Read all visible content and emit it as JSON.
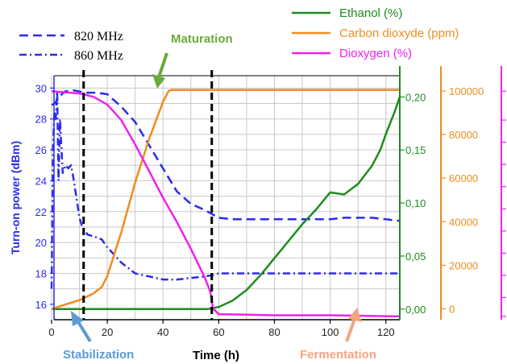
{
  "chart_data": {
    "type": "line",
    "xlabel": "Time (h)",
    "xlim": [
      0,
      125
    ],
    "x_ticks": [
      0,
      20,
      40,
      60,
      80,
      100,
      120
    ],
    "axes": {
      "left": {
        "label": "Turn-on power (dBm)",
        "lim": [
          15,
          30.8
        ],
        "ticks": [
          16,
          18,
          20,
          22,
          24,
          26,
          28,
          30
        ],
        "color": "#2a2af0"
      },
      "ethanol": {
        "lim": [
          -0.01,
          0.22
        ],
        "ticks": [
          "0,00",
          "0,05",
          "0,10",
          "0,15",
          "0,20"
        ],
        "tick_values": [
          0,
          0.05,
          0.1,
          0.15,
          0.2
        ],
        "color": "#1e8c1e"
      },
      "co2": {
        "lim": [
          -5000,
          107000
        ],
        "ticks": [
          "0",
          "20000",
          "40000",
          "60000",
          "80000",
          "100000"
        ],
        "tick_values": [
          0,
          20000,
          40000,
          60000,
          80000,
          100000
        ],
        "color": "#f08c1e"
      },
      "o2": {
        "lim": [
          0,
          22
        ],
        "color": "#ee22ee"
      }
    },
    "series": [
      {
        "name": "820 MHz",
        "axis": "left",
        "style": "dash",
        "color": "#2a2af0",
        "x": [
          0,
          1,
          2,
          3,
          5,
          8,
          12,
          16,
          20,
          25,
          30,
          35,
          40,
          45,
          50,
          55,
          58,
          60,
          65,
          70,
          80,
          90,
          100,
          105,
          110,
          115,
          120,
          125
        ],
        "y": [
          28.9,
          29.0,
          29.2,
          29.5,
          29.8,
          29.85,
          29.7,
          29.7,
          29.6,
          28.8,
          27.8,
          26.3,
          24.8,
          23.3,
          22.5,
          22.1,
          21.8,
          21.6,
          21.5,
          21.5,
          21.5,
          21.5,
          21.5,
          21.6,
          21.6,
          21.6,
          21.5,
          21.4
        ]
      },
      {
        "name": "860 MHz",
        "axis": "left",
        "style": "dashdot",
        "color": "#2a2af0",
        "x": [
          0,
          0.5,
          1,
          1.5,
          2,
          2.5,
          3,
          4,
          5,
          6,
          7,
          8,
          9,
          10,
          11,
          13,
          15,
          18,
          20,
          25,
          30,
          35,
          40,
          45,
          50,
          55,
          58,
          60,
          70,
          80,
          100,
          125
        ],
        "y": [
          17.0,
          26.0,
          28.5,
          28.0,
          29.8,
          24.0,
          28.0,
          24.5,
          25.0,
          24.8,
          25.0,
          24.0,
          22.8,
          21.6,
          21.0,
          20.5,
          20.4,
          20.2,
          19.7,
          18.7,
          18.0,
          17.8,
          17.6,
          17.6,
          17.7,
          17.8,
          17.9,
          18.0,
          18.0,
          18.0,
          18.0,
          18.0
        ]
      },
      {
        "name": "Ethanol (%)",
        "axis": "ethanol",
        "style": "solid",
        "color": "#1e8c1e",
        "x": [
          0,
          56,
          60,
          65,
          70,
          75,
          80,
          85,
          90,
          95,
          100,
          105,
          107,
          110,
          115,
          118,
          120,
          123,
          125
        ],
        "y": [
          0,
          0,
          0.002,
          0.008,
          0.018,
          0.032,
          0.048,
          0.064,
          0.08,
          0.094,
          0.11,
          0.108,
          0.112,
          0.118,
          0.135,
          0.15,
          0.165,
          0.185,
          0.2
        ]
      },
      {
        "name": "Carbon dioxyde (ppm)",
        "axis": "co2",
        "style": "solid",
        "color": "#f08c1e",
        "x": [
          0,
          5,
          10,
          15,
          18,
          20,
          25,
          30,
          35,
          40,
          42,
          43,
          45,
          60,
          80,
          100,
          125
        ],
        "y": [
          0,
          2000,
          4000,
          7000,
          10000,
          15000,
          35000,
          58000,
          78000,
          95000,
          100000,
          100500,
          100500,
          100500,
          100500,
          100500,
          100500
        ]
      },
      {
        "name": "Dioxygen (%)",
        "axis": "o2",
        "style": "solid",
        "color": "#ee22ee",
        "x": [
          0,
          5,
          10,
          15,
          20,
          25,
          30,
          35,
          40,
          45,
          50,
          55,
          57,
          58,
          60,
          70,
          80,
          100,
          125
        ],
        "y": [
          20.6,
          20.5,
          20.4,
          20.1,
          19.4,
          18.0,
          15.8,
          13.4,
          11.0,
          8.8,
          6.4,
          3.8,
          2.5,
          1.0,
          0.5,
          0.45,
          0.4,
          0.4,
          0.3
        ]
      }
    ],
    "vlines": [
      11.5,
      57.5
    ],
    "grid": true,
    "legend_left": [
      "820 MHz",
      "860 MHz"
    ],
    "legend_right": [
      "Ethanol (%)",
      "Carbon dioxyde (ppm)",
      "Dioxygen (%)"
    ],
    "annotations": [
      {
        "text": "Maturation",
        "color": "#6aaa3a"
      },
      {
        "text": "Stabilization",
        "color": "#5b9bd5"
      },
      {
        "text": "Fermentation",
        "color": "#f4a582"
      }
    ]
  }
}
